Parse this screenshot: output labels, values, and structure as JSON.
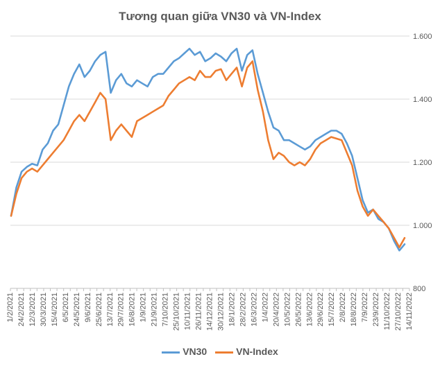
{
  "chart_data": {
    "type": "line",
    "title": "Tương quan giữa VN30 và VN-Index",
    "xlabel": "",
    "ylabel": "",
    "ylim": [
      800,
      1600
    ],
    "y_ticks": [
      "800",
      "1.000",
      "1.200",
      "1.400",
      "1.600"
    ],
    "y_tick_values": [
      800,
      1000,
      1200,
      1400,
      1600
    ],
    "x_tick_labels": [
      "1/2/2021",
      "24/2/2021",
      "12/3/2021",
      "30/3/2021",
      "15/4/2021",
      "6/5/2021",
      "24/5/2021",
      "9/6/2021",
      "25/6/2021",
      "13/7/2021",
      "29/7/2021",
      "16/8/2021",
      "1/9/2021",
      "21/9/2021",
      "7/10/2021",
      "25/10/2021",
      "10/11/2021",
      "26/11/2021",
      "14/12/2021",
      "30/12/2021",
      "18/1/2022",
      "28/2/2022",
      "16/3/2022",
      "1/4/2022",
      "20/4/2022",
      "10/5/2022",
      "26/5/2022",
      "13/6/2022",
      "29/6/2022",
      "15/7/2022",
      "2/8/2022",
      "18/8/2022",
      "7/9/2022",
      "23/9/2022",
      "11/10/2022",
      "27/10/2022",
      "14/11/2022"
    ],
    "legend_position": "bottom",
    "grid": "horizontal",
    "series": [
      {
        "name": "VN30",
        "color": "#5B9BD5",
        "values": [
          1030,
          1120,
          1170,
          1185,
          1195,
          1190,
          1240,
          1260,
          1300,
          1320,
          1380,
          1440,
          1480,
          1510,
          1470,
          1490,
          1520,
          1540,
          1550,
          1420,
          1460,
          1480,
          1450,
          1440,
          1460,
          1450,
          1440,
          1470,
          1480,
          1480,
          1500,
          1520,
          1530,
          1545,
          1560,
          1540,
          1550,
          1520,
          1530,
          1545,
          1535,
          1520,
          1545,
          1560,
          1490,
          1540,
          1555,
          1480,
          1420,
          1360,
          1310,
          1300,
          1270,
          1270,
          1260,
          1250,
          1240,
          1250,
          1270,
          1280,
          1290,
          1300,
          1300,
          1290,
          1260,
          1220,
          1150,
          1080,
          1040,
          1050,
          1020,
          1010,
          990,
          950,
          920,
          940
        ]
      },
      {
        "name": "VN-Index",
        "color": "#ED7D31",
        "values": [
          1030,
          1100,
          1150,
          1170,
          1180,
          1170,
          1190,
          1210,
          1230,
          1250,
          1270,
          1300,
          1330,
          1350,
          1330,
          1360,
          1390,
          1420,
          1400,
          1270,
          1300,
          1320,
          1300,
          1280,
          1330,
          1340,
          1350,
          1360,
          1370,
          1380,
          1410,
          1430,
          1450,
          1460,
          1470,
          1460,
          1490,
          1470,
          1470,
          1490,
          1495,
          1460,
          1480,
          1500,
          1440,
          1500,
          1520,
          1430,
          1360,
          1270,
          1210,
          1230,
          1220,
          1200,
          1190,
          1200,
          1190,
          1210,
          1240,
          1260,
          1270,
          1280,
          1275,
          1270,
          1230,
          1190,
          1110,
          1060,
          1030,
          1050,
          1030,
          1010,
          990,
          960,
          930,
          960
        ]
      }
    ]
  }
}
